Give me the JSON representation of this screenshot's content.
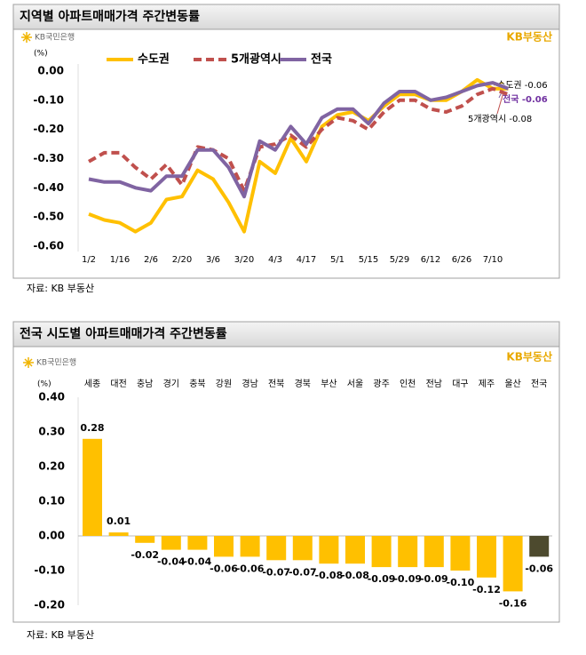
{
  "chart_data": [
    {
      "type": "line",
      "title": "지역별 아파트매매가격 주간변동률",
      "brand_left": "KB국민은행",
      "brand_right": "KB부동산",
      "y_unit": "(%)",
      "categories": [
        "1/2",
        null,
        "1/16",
        null,
        "2/6",
        null,
        "2/20",
        null,
        "3/6",
        null,
        "3/20",
        null,
        "4/3",
        null,
        "4/17",
        null,
        "5/1",
        null,
        "5/15",
        null,
        "5/29",
        null,
        "6/12",
        null,
        "6/26",
        null,
        "7/10",
        null
      ],
      "series": [
        {
          "name": "수도권",
          "color": "#ffc000",
          "line_style": "solid",
          "values": [
            -0.49,
            -0.51,
            -0.52,
            -0.55,
            -0.52,
            -0.44,
            -0.43,
            -0.34,
            -0.37,
            -0.45,
            -0.55,
            -0.31,
            -0.35,
            -0.23,
            -0.31,
            -0.19,
            -0.15,
            -0.14,
            -0.17,
            -0.12,
            -0.08,
            -0.08,
            -0.1,
            -0.1,
            -0.07,
            -0.03,
            -0.06,
            -0.06
          ]
        },
        {
          "name": "5개광역시",
          "color": "#c0504d",
          "line_style": "dashed",
          "values": [
            -0.31,
            -0.28,
            -0.28,
            -0.33,
            -0.37,
            -0.32,
            -0.39,
            -0.26,
            -0.27,
            -0.3,
            -0.41,
            -0.26,
            -0.25,
            -0.22,
            -0.26,
            -0.2,
            -0.16,
            -0.17,
            -0.2,
            -0.14,
            -0.1,
            -0.1,
            -0.13,
            -0.14,
            -0.12,
            -0.08,
            -0.06,
            -0.08
          ]
        },
        {
          "name": "전국",
          "color": "#8064a2",
          "line_style": "solid",
          "values": [
            -0.37,
            -0.38,
            -0.38,
            -0.4,
            -0.41,
            -0.36,
            -0.36,
            -0.27,
            -0.27,
            -0.33,
            -0.43,
            -0.24,
            -0.27,
            -0.19,
            -0.25,
            -0.16,
            -0.13,
            -0.13,
            -0.18,
            -0.11,
            -0.07,
            -0.07,
            -0.1,
            -0.09,
            -0.07,
            -0.05,
            -0.04,
            -0.06
          ]
        }
      ],
      "annotations": [
        "수도권 -0.06",
        "전국 -0.06",
        "5개광역시 -0.08"
      ],
      "ylim": [
        -0.6,
        0
      ],
      "yticks": [
        {
          "value": 0,
          "label": "0.00"
        },
        {
          "value": -0.1,
          "label": "-0.10"
        },
        {
          "value": -0.2,
          "label": "-0.20"
        },
        {
          "value": -0.3,
          "label": "-0.30"
        },
        {
          "value": -0.4,
          "label": "-0.40"
        },
        {
          "value": -0.5,
          "label": "-0.50"
        },
        {
          "value": -0.6,
          "label": "-0.60"
        }
      ],
      "grid": false,
      "source": "자료: KB 부동산"
    },
    {
      "type": "bar",
      "title": "전국 시도별 아파트매매가격 주간변동률",
      "brand_left": "KB국민은행",
      "brand_right": "KB부동산",
      "y_unit": "(%)",
      "categories": [
        "세종",
        "대전",
        "충남",
        "경기",
        "충북",
        "강원",
        "경남",
        "전북",
        "경북",
        "부산",
        "서울",
        "광주",
        "인천",
        "전남",
        "대구",
        "제주",
        "울산",
        "전국"
      ],
      "values": [
        0.28,
        0.01,
        -0.02,
        -0.04,
        -0.04,
        -0.06,
        -0.06,
        -0.07,
        -0.07,
        -0.08,
        -0.08,
        -0.09,
        -0.09,
        -0.09,
        -0.1,
        -0.12,
        -0.16,
        -0.06
      ],
      "value_labels": [
        "0.28",
        "0.01",
        "-0.02",
        "-0.04",
        "-0.04",
        "-0.06",
        "-0.06",
        "-0.07",
        "-0.07",
        "-0.08",
        "-0.08",
        "-0.09",
        "-0.09",
        "-0.09",
        "-0.10",
        "-0.12",
        "-0.16",
        "-0.06"
      ],
      "colors": [
        "#ffc000",
        "#ffc000",
        "#ffc000",
        "#ffc000",
        "#ffc000",
        "#ffc000",
        "#ffc000",
        "#ffc000",
        "#ffc000",
        "#ffc000",
        "#ffc000",
        "#ffc000",
        "#ffc000",
        "#ffc000",
        "#ffc000",
        "#ffc000",
        "#ffc000",
        "#4d4a2e"
      ],
      "ylim": [
        -0.2,
        0.4
      ],
      "yticks": [
        {
          "value": 0.4,
          "label": "0.40"
        },
        {
          "value": 0.3,
          "label": "0.30"
        },
        {
          "value": 0.2,
          "label": "0.20"
        },
        {
          "value": 0.1,
          "label": "0.10"
        },
        {
          "value": 0,
          "label": "0.00"
        },
        {
          "value": -0.1,
          "label": "-0.10"
        },
        {
          "value": -0.2,
          "label": "-0.20"
        }
      ],
      "grid": false,
      "source": "자료: KB 부동산"
    }
  ]
}
